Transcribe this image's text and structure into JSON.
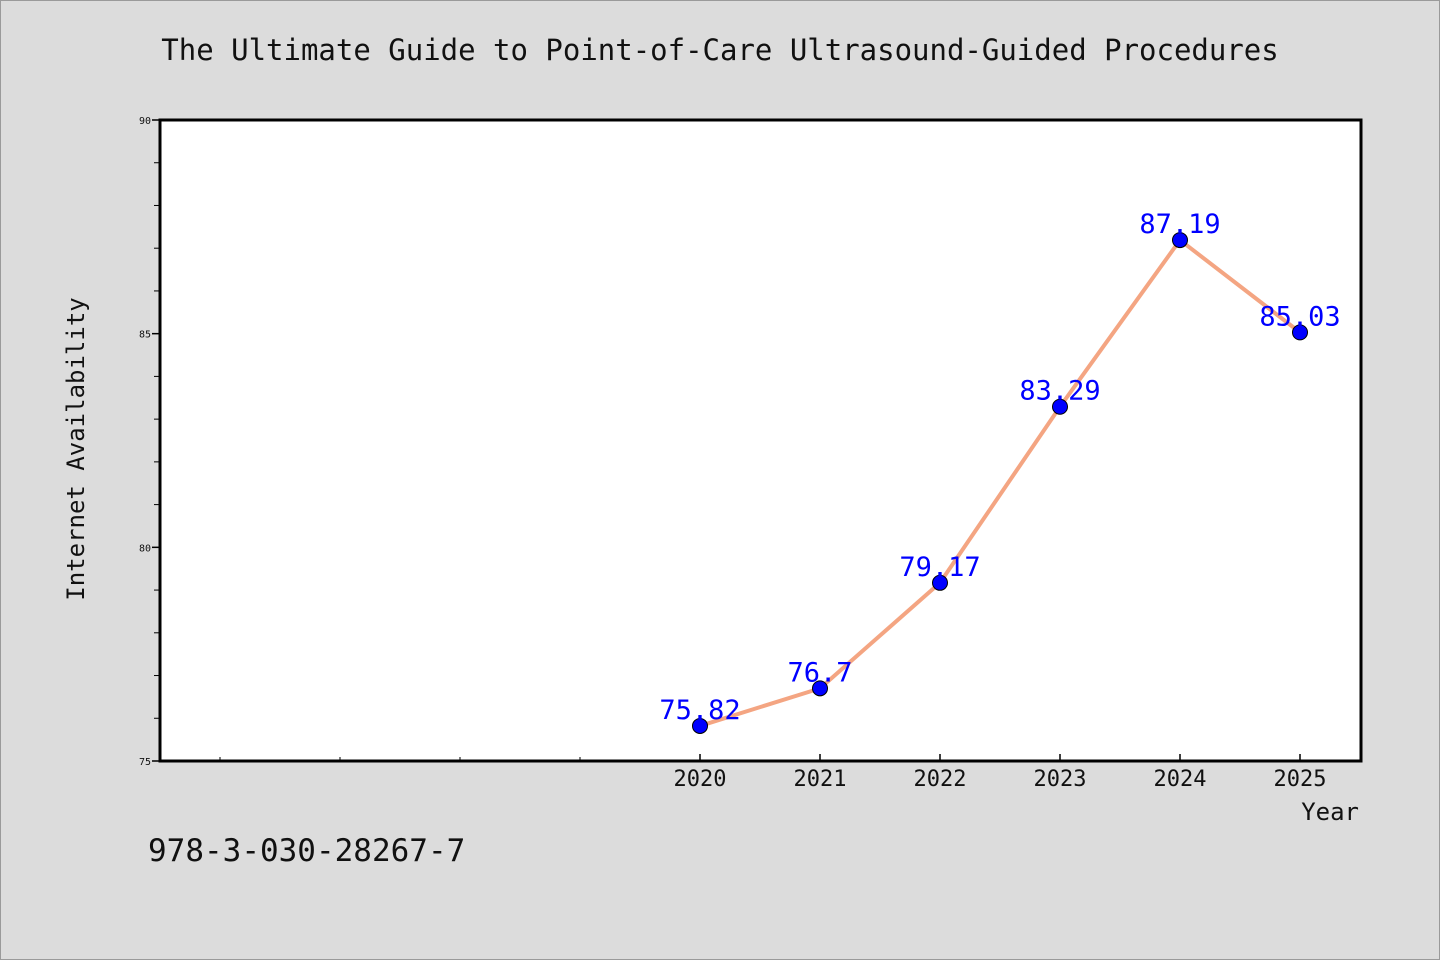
{
  "chart_data": {
    "type": "line",
    "title": "The Ultimate Guide to Point-of-Care Ultrasound-Guided Procedures",
    "xlabel": "Year",
    "ylabel": "Internet Availability",
    "x": [
      "2020",
      "2021",
      "2022",
      "2023",
      "2024",
      "2025"
    ],
    "values": [
      75.82,
      76.7,
      79.17,
      83.29,
      87.19,
      85.03
    ],
    "data_labels": [
      "75.82",
      "76.7",
      "79.17",
      "83.29",
      "87.19",
      "85.03"
    ],
    "ylim": [
      75,
      90
    ],
    "yticks": [
      "75",
      "80",
      "85",
      "90"
    ],
    "grid": false,
    "legend": "none",
    "line_color": "#f4a582",
    "marker_color": "#0000ff"
  },
  "footer": {
    "isbn": "978-3-030-28267-7"
  }
}
